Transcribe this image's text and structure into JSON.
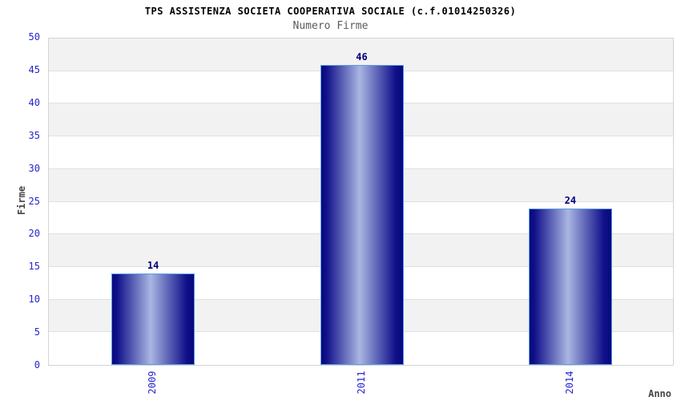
{
  "chart_data": {
    "type": "bar",
    "title": "TPS ASSISTENZA SOCIETA COOPERATIVA SOCIALE (c.f.01014250326)",
    "subtitle": "Numero Firme",
    "xlabel": "Anno",
    "ylabel": "Firme",
    "categories": [
      "2009",
      "2011",
      "2014"
    ],
    "values": [
      14,
      46,
      24
    ],
    "value_labels": [
      "14",
      "46",
      "24"
    ],
    "ylim": [
      0,
      50
    ],
    "ytick_step": 5,
    "yticks": [
      "0",
      "5",
      "10",
      "15",
      "20",
      "25",
      "30",
      "35",
      "40",
      "45",
      "50"
    ],
    "legend": "none",
    "grid": "horizontal-gridlines-with-alternating-bands",
    "colors": {
      "tick_label": "#2525cf",
      "value_label": "#00007d",
      "bar_edge_dark": "#08087c",
      "bar_mid_dark": "#10108a",
      "bar_center_light": "#aab6e2",
      "bar_border": "#5b9de6",
      "band_gray": "#f2f2f2",
      "band_white": "#ffffff",
      "gridline": "#e0e0e0",
      "plot_border": "#d4d4d4",
      "title_color": "#000000",
      "subtitle_color": "#5a5a5a",
      "axis_title_color": "#474747"
    }
  }
}
